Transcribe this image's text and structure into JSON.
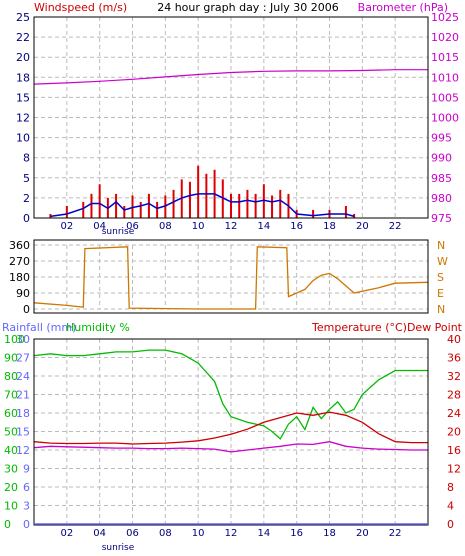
{
  "colors": {
    "wind": "#dd0000",
    "wind_avg": "#0000cc",
    "barometer": "#cc00cc",
    "direction": "#cc7700",
    "rain": "#6666ff",
    "humidity": "#00bb00",
    "temperature": "#cc0000",
    "dewpoint": "#cc00cc",
    "grid": "#bbbbbb"
  },
  "chart_data": [
    {
      "type": "line",
      "title": "24 hour graph day : July 30 2006",
      "left_axis_label": "Windspeed (m/s)",
      "right_axis_label": "Barometer (hPa)",
      "x_ticks": [
        "02",
        "04",
        "06",
        "08",
        "10",
        "12",
        "14",
        "16",
        "18",
        "20",
        "22"
      ],
      "x_annotation": "sunrise",
      "left_ticks": [
        "0",
        "2",
        "5",
        "8",
        "10",
        "12",
        "15",
        "18",
        "20",
        "22",
        "25"
      ],
      "right_ticks": [
        "975",
        "980",
        "985",
        "990",
        "995",
        "1000",
        "1005",
        "1010",
        "1015",
        "1020",
        "1025"
      ],
      "ylim_left": [
        0,
        25
      ],
      "ylim_right": [
        975,
        1025
      ],
      "grid": true,
      "series": [
        {
          "name": "Windspeed gust",
          "axis": "left",
          "x": [
            1,
            2,
            3,
            3.5,
            4,
            4.5,
            5,
            5.5,
            6,
            6.5,
            7,
            7.5,
            8,
            8.5,
            9,
            9.5,
            10,
            10.5,
            11,
            11.5,
            12,
            12.5,
            13,
            13.5,
            14,
            14.5,
            15,
            15.5,
            16,
            17,
            18,
            19,
            19.5
          ],
          "y": [
            0.5,
            1.5,
            2,
            3,
            4.2,
            2.5,
            3,
            1.5,
            2.8,
            2,
            3,
            2,
            2.8,
            3.5,
            4.8,
            4.5,
            6.5,
            5.5,
            6,
            4.8,
            3,
            3,
            3.5,
            3,
            4.2,
            2.8,
            3.5,
            3,
            1,
            1,
            1,
            1.5,
            0.5
          ]
        },
        {
          "name": "Windspeed average",
          "axis": "left",
          "x": [
            1,
            2,
            3,
            3.5,
            4,
            4.5,
            5,
            5.5,
            6,
            6.5,
            7,
            7.5,
            8,
            8.5,
            9,
            9.5,
            10,
            10.5,
            11,
            11.5,
            12,
            12.5,
            13,
            13.5,
            14,
            14.5,
            15,
            15.5,
            16,
            17,
            18,
            19,
            19.5
          ],
          "y": [
            0.2,
            0.5,
            1.2,
            1.8,
            1.8,
            1.2,
            2,
            1,
            1.3,
            1.5,
            1.8,
            1.2,
            1.5,
            2,
            2.5,
            2.8,
            3,
            3,
            3,
            2.5,
            2,
            2,
            2.2,
            2,
            2.2,
            2,
            2.2,
            1.5,
            0.5,
            0.3,
            0.5,
            0.5,
            0.2
          ]
        },
        {
          "name": "Barometer",
          "axis": "right",
          "x": [
            0,
            2,
            4,
            6,
            8,
            10,
            12,
            14,
            16,
            18,
            20,
            22,
            24
          ],
          "y": [
            1008.3,
            1008.6,
            1009,
            1009.5,
            1010.1,
            1010.7,
            1011.2,
            1011.5,
            1011.6,
            1011.6,
            1011.7,
            1011.9,
            1011.9
          ]
        }
      ]
    },
    {
      "type": "line",
      "left_ticks": [
        "0",
        "90",
        "180",
        "270",
        "360"
      ],
      "right_ticks": [
        "N",
        "E",
        "S",
        "W",
        "N"
      ],
      "ylim": [
        0,
        360
      ],
      "grid": true,
      "series": [
        {
          "name": "Wind direction",
          "x": [
            0,
            2,
            3,
            3.1,
            5.7,
            5.8,
            10,
            11.5,
            13.5,
            13.6,
            15.4,
            15.5,
            16,
            16.5,
            17,
            17.5,
            18,
            18.5,
            19,
            19.5,
            20,
            21,
            22,
            24
          ],
          "y": [
            35,
            20,
            10,
            340,
            350,
            5,
            0,
            0,
            0,
            350,
            345,
            70,
            90,
            110,
            160,
            190,
            200,
            170,
            130,
            90,
            100,
            120,
            145,
            150
          ]
        }
      ]
    },
    {
      "type": "line",
      "rain_label": "Rainfall (mm)",
      "humidity_label": "Humidity %",
      "right_axis_label": "Temperature (°C)Dew Point",
      "x_ticks": [
        "02",
        "04",
        "06",
        "08",
        "10",
        "12",
        "14",
        "16",
        "18",
        "20",
        "22"
      ],
      "x_annotation": "sunrise",
      "rain_ticks": [
        "0",
        "3",
        "6",
        "9",
        "12",
        "15",
        "18",
        "21",
        "24",
        "27",
        "30"
      ],
      "humidity_ticks": [
        "0",
        "10",
        "20",
        "30",
        "40",
        "50",
        "60",
        "70",
        "80",
        "90",
        "100"
      ],
      "right_ticks": [
        "0",
        "4",
        "8",
        "12",
        "16",
        "20",
        "24",
        "28",
        "32",
        "36",
        "40"
      ],
      "ylim_left": [
        0,
        100
      ],
      "ylim_right": [
        0,
        40
      ],
      "grid": true,
      "series": [
        {
          "name": "Humidity",
          "axis": "humidity",
          "x": [
            0,
            1,
            2,
            3,
            4,
            5,
            6,
            7,
            8,
            9,
            10,
            11,
            11.5,
            12,
            13,
            14,
            14.5,
            15,
            15.5,
            16,
            16.5,
            17,
            17.5,
            18,
            18.5,
            19,
            19.5,
            20,
            21,
            22,
            23,
            24
          ],
          "y": [
            91,
            92,
            91,
            91,
            92,
            93,
            93,
            94,
            94,
            92,
            87,
            77,
            65,
            58,
            55,
            53,
            50,
            46,
            54,
            58,
            51,
            63,
            57,
            62,
            66,
            60,
            62,
            70,
            78,
            83,
            83,
            83
          ]
        },
        {
          "name": "Temperature",
          "axis": "right",
          "x": [
            0,
            1,
            2,
            3,
            4,
            5,
            6,
            7,
            8,
            9,
            10,
            11,
            12,
            13,
            14,
            15,
            16,
            17,
            18,
            19,
            20,
            21,
            22,
            23,
            24
          ],
          "y": [
            17.8,
            17.5,
            17.4,
            17.4,
            17.5,
            17.5,
            17.3,
            17.4,
            17.5,
            17.7,
            18,
            18.6,
            19.4,
            20.5,
            22,
            23,
            24,
            23.5,
            24.2,
            23.5,
            22,
            19.5,
            17.8,
            17.6,
            17.6
          ]
        },
        {
          "name": "Dew Point",
          "axis": "right",
          "x": [
            0,
            1,
            2,
            3,
            4,
            5,
            6,
            7,
            8,
            9,
            10,
            11,
            12,
            13,
            14,
            15,
            16,
            17,
            18,
            19,
            20,
            21,
            22,
            23,
            24
          ],
          "y": [
            16.5,
            16.8,
            16.7,
            16.6,
            16.5,
            16.4,
            16.4,
            16.3,
            16.3,
            16.4,
            16.3,
            16.2,
            15.6,
            16.0,
            16.4,
            16.8,
            17.3,
            17.2,
            17.8,
            16.8,
            16.4,
            16.2,
            16.1,
            16.0,
            16.0
          ]
        }
      ]
    }
  ]
}
